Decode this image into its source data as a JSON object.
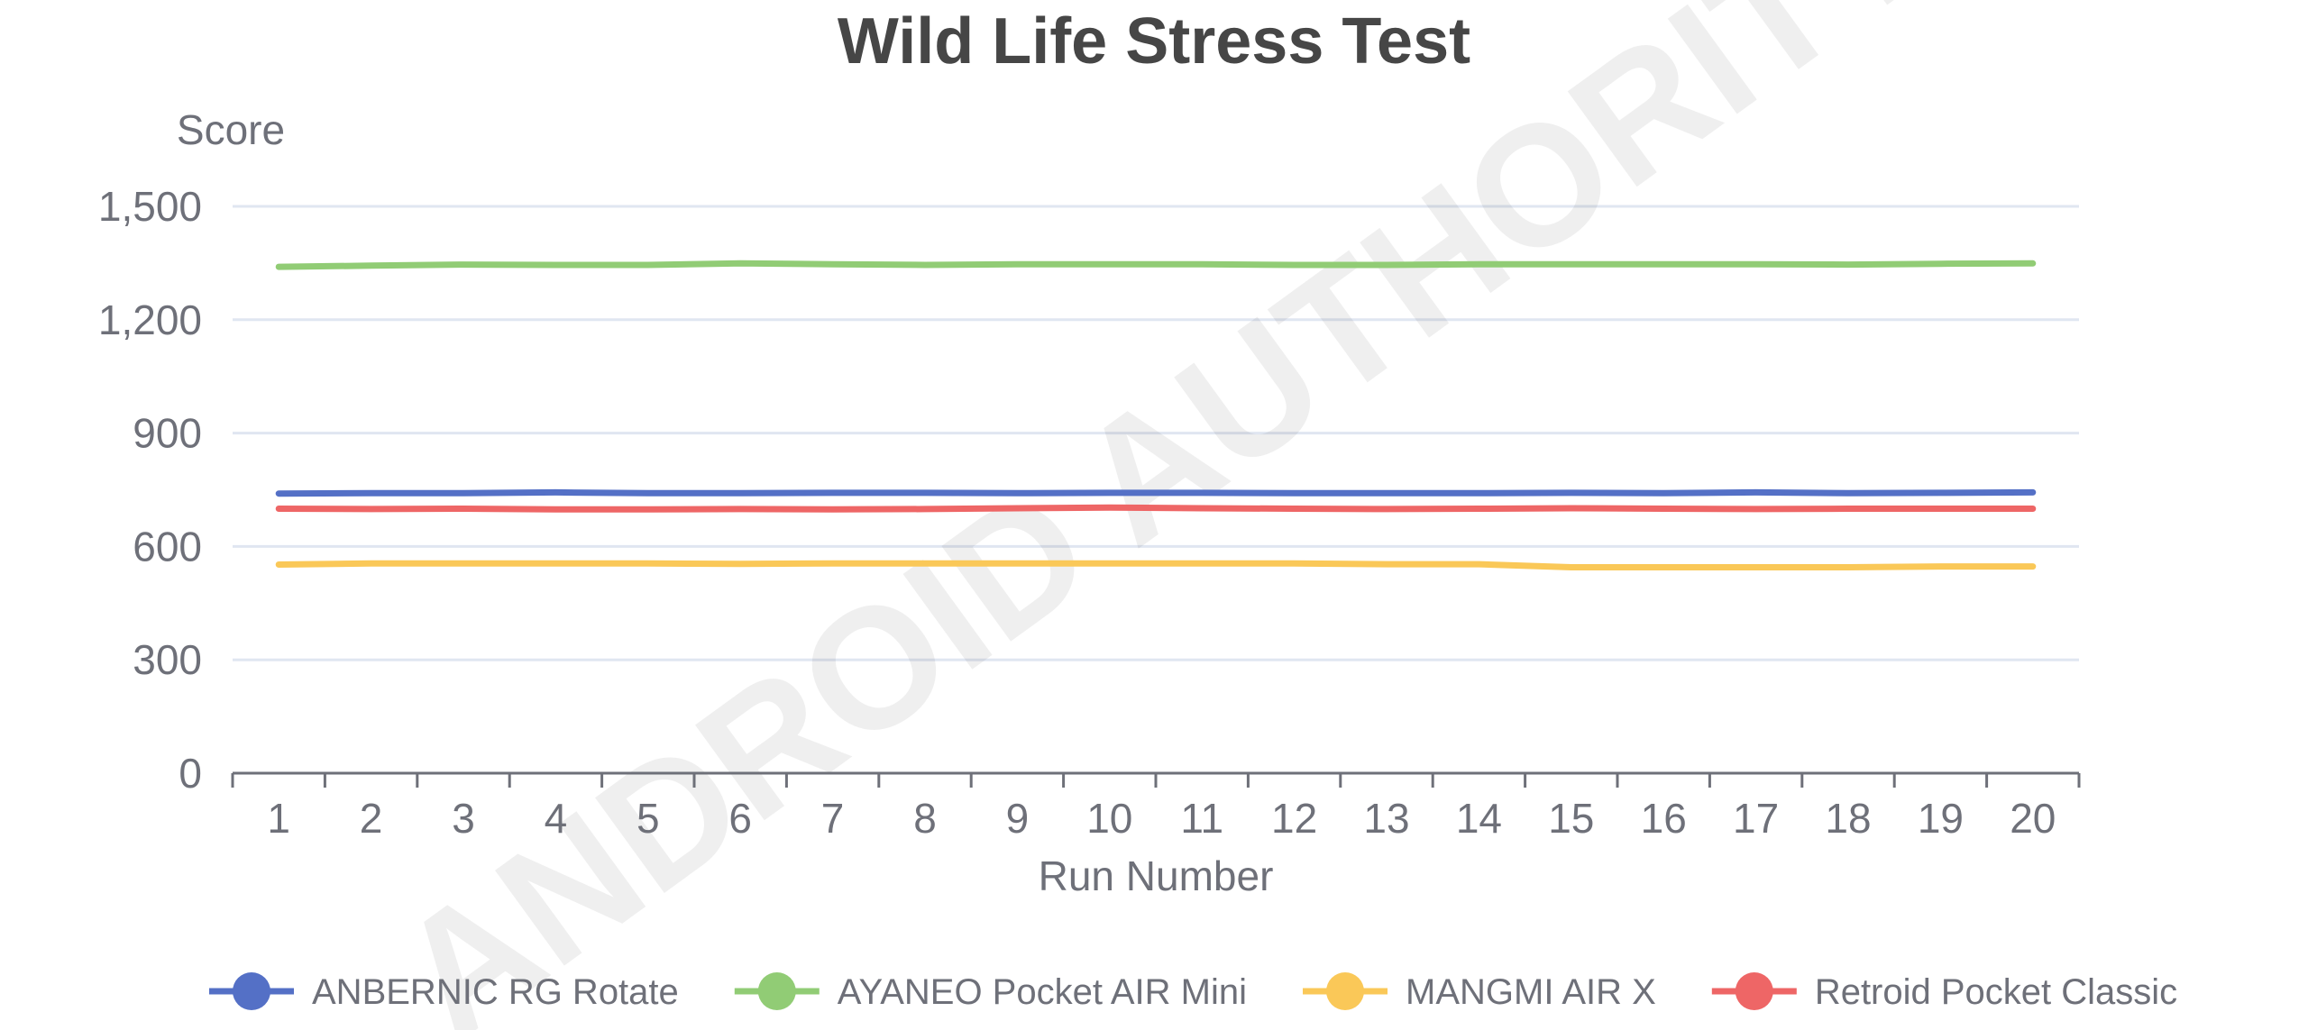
{
  "chart_data": {
    "type": "line",
    "title": "Wild Life Stress Test",
    "xlabel": "Run Number",
    "ylabel": "Score",
    "categories": [
      "1",
      "2",
      "3",
      "4",
      "5",
      "6",
      "7",
      "8",
      "9",
      "10",
      "11",
      "12",
      "13",
      "14",
      "15",
      "16",
      "17",
      "18",
      "19",
      "20"
    ],
    "ylim": [
      0,
      1500
    ],
    "yticks": [
      0,
      300,
      600,
      900,
      1200,
      1500
    ],
    "ytick_labels": [
      "0",
      "300",
      "600",
      "900",
      "1,200",
      "1,500"
    ],
    "grid": true,
    "legend_position": "bottom",
    "series": [
      {
        "name": "ANBERNIC RG Rotate",
        "color": "#5470c6",
        "values": [
          740,
          741,
          741,
          743,
          741,
          741,
          742,
          742,
          741,
          742,
          742,
          741,
          741,
          741,
          742,
          741,
          743,
          741,
          742,
          743
        ]
      },
      {
        "name": "AYANEO Pocket AIR Mini",
        "color": "#91cc75",
        "values": [
          1340,
          1343,
          1346,
          1345,
          1345,
          1349,
          1347,
          1345,
          1347,
          1347,
          1347,
          1345,
          1345,
          1347,
          1347,
          1347,
          1347,
          1346,
          1348,
          1349
        ]
      },
      {
        "name": "MANGMI AIR X",
        "color": "#fac858",
        "values": [
          552,
          555,
          555,
          555,
          555,
          554,
          555,
          555,
          555,
          555,
          555,
          555,
          553,
          553,
          545,
          545,
          545,
          545,
          547,
          547
        ]
      },
      {
        "name": "Retroid Pocket Classic",
        "color": "#ee6666",
        "values": [
          700,
          699,
          700,
          698,
          698,
          699,
          698,
          699,
          701,
          703,
          701,
          700,
          699,
          700,
          701,
          700,
          699,
          700,
          700,
          700
        ]
      }
    ]
  },
  "watermark": "ANDROID AUTHORITY"
}
